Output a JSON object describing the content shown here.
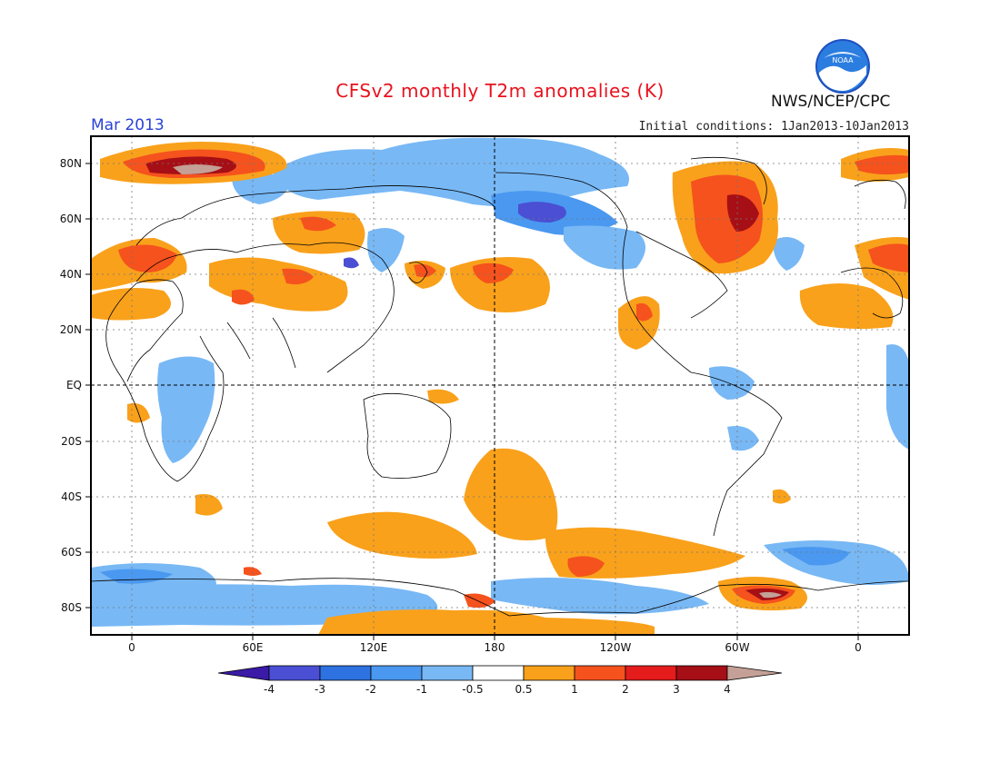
{
  "header": {
    "title": "CFSv2 monthly T2m anomalies (K)",
    "month": "Mar 2013",
    "initial_conditions": "Initial conditions: 1Jan2013-10Jan2013",
    "agency": "NWS/NCEP/CPC",
    "logo_text": "NOAA"
  },
  "map": {
    "latitude_labels": [
      "80N",
      "60N",
      "40N",
      "20N",
      "EQ",
      "20S",
      "40S",
      "60S",
      "80S"
    ],
    "longitude_labels": [
      "0",
      "60E",
      "120E",
      "180",
      "120W",
      "60W",
      "0"
    ]
  },
  "colorbar": {
    "labels": [
      "-4",
      "-3",
      "-2",
      "-1",
      "-0.5",
      "0.5",
      "1",
      "2",
      "3",
      "4"
    ],
    "colors": [
      "#3a1aa6",
      "#4a4fd3",
      "#2d72e0",
      "#4a98f0",
      "#78b8f5",
      "#ffffff",
      "#f9a11b",
      "#f5521d",
      "#e41c1c",
      "#a50f15",
      "#c4a096",
      "#7a5a50"
    ]
  },
  "colors": {
    "warm_1": "#f9a11b",
    "warm_2": "#f5521d",
    "warm_3": "#a50f15",
    "warm_4": "#c4a096",
    "cool_1": "#78b8f5",
    "cool_2": "#4a98f0",
    "cool_3": "#2d72e0",
    "cool_4": "#4a4fd3",
    "title": "#e8121e",
    "month": "#2a43d6"
  }
}
